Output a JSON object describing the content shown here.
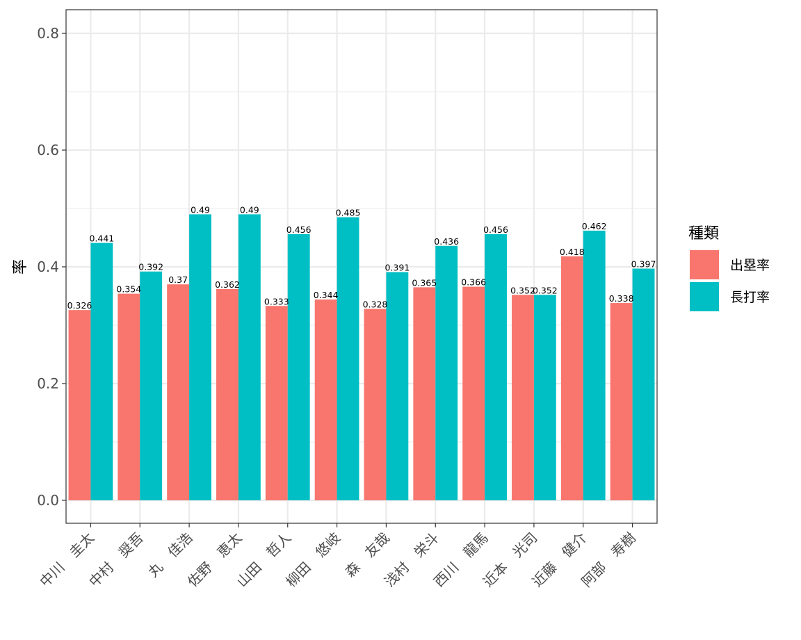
{
  "chart_data": {
    "type": "bar",
    "title": "",
    "xlabel": "",
    "ylabel": "率",
    "ylim": [
      0,
      0.84
    ],
    "yticks": [
      "0.0",
      "0.2",
      "0.4",
      "0.6",
      "0.8"
    ],
    "grid": true,
    "legend_position": "right",
    "legend_title": "種類",
    "categories": [
      "中川　圭太",
      "中村　奨吾",
      "丸　佳浩",
      "佐野　恵太",
      "山田　哲人",
      "柳田　悠岐",
      "森　友哉",
      "浅村　栄斗",
      "西川　龍馬",
      "近本　光司",
      "近藤　健介",
      "阿部　寿樹"
    ],
    "series": [
      {
        "name": "出塁率",
        "color": "#F8766D",
        "values": [
          0.326,
          0.354,
          0.37,
          0.362,
          0.333,
          0.344,
          0.328,
          0.365,
          0.366,
          0.352,
          0.418,
          0.338
        ],
        "labels": [
          "0.326",
          "0.354",
          "0.37",
          "0.362",
          "0.333",
          "0.344",
          "0.328",
          "0.365",
          "0.366",
          "0.352",
          "0.418",
          "0.338"
        ]
      },
      {
        "name": "長打率",
        "color": "#00BFC4",
        "values": [
          0.441,
          0.392,
          0.49,
          0.49,
          0.456,
          0.485,
          0.391,
          0.436,
          0.456,
          0.352,
          0.462,
          0.397
        ],
        "labels": [
          "0.441",
          "0.392",
          "0.49",
          "0.49",
          "0.456",
          "0.485",
          "0.391",
          "0.436",
          "0.456",
          "0.352",
          "0.462",
          "0.397"
        ]
      }
    ]
  }
}
